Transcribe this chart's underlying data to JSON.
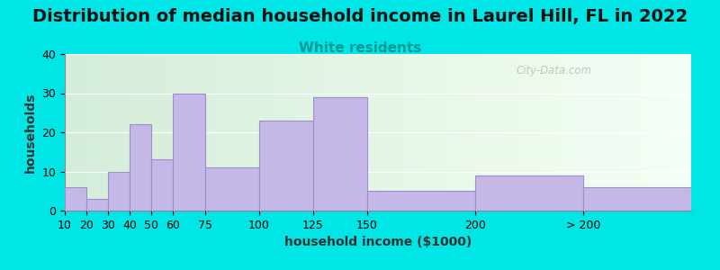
{
  "title": "Distribution of median household income in Laurel Hill, FL in 2022",
  "subtitle": "White residents",
  "subtitle_color": "#009999",
  "xlabel": "household income ($1000)",
  "ylabel": "households",
  "bar_left_edges": [
    10,
    20,
    30,
    40,
    50,
    60,
    75,
    100,
    125,
    150,
    200,
    250
  ],
  "bar_widths": [
    10,
    10,
    10,
    10,
    10,
    15,
    25,
    25,
    25,
    50,
    50,
    50
  ],
  "bar_heights": [
    6,
    3,
    10,
    22,
    13,
    30,
    11,
    23,
    29,
    5,
    9,
    6
  ],
  "bar_color": "#c5b8e8",
  "bar_edge_color": "#9e8fc7",
  "ylim": [
    0,
    40
  ],
  "yticks": [
    0,
    10,
    20,
    30,
    40
  ],
  "xtick_positions": [
    10,
    20,
    30,
    40,
    50,
    60,
    75,
    100,
    125,
    150,
    200,
    250
  ],
  "xtick_labels": [
    "10",
    "20",
    "30",
    "40",
    "50",
    "60",
    "75",
    "100",
    "125",
    "150",
    "200",
    "> 200"
  ],
  "xlim": [
    10,
    300
  ],
  "background_color": "#00e5e5",
  "plot_bg_color_left": "#d4edda",
  "plot_bg_color_right": "#f5fff5",
  "title_fontsize": 14,
  "subtitle_fontsize": 11,
  "axis_label_fontsize": 10,
  "watermark": "City-Data.com"
}
